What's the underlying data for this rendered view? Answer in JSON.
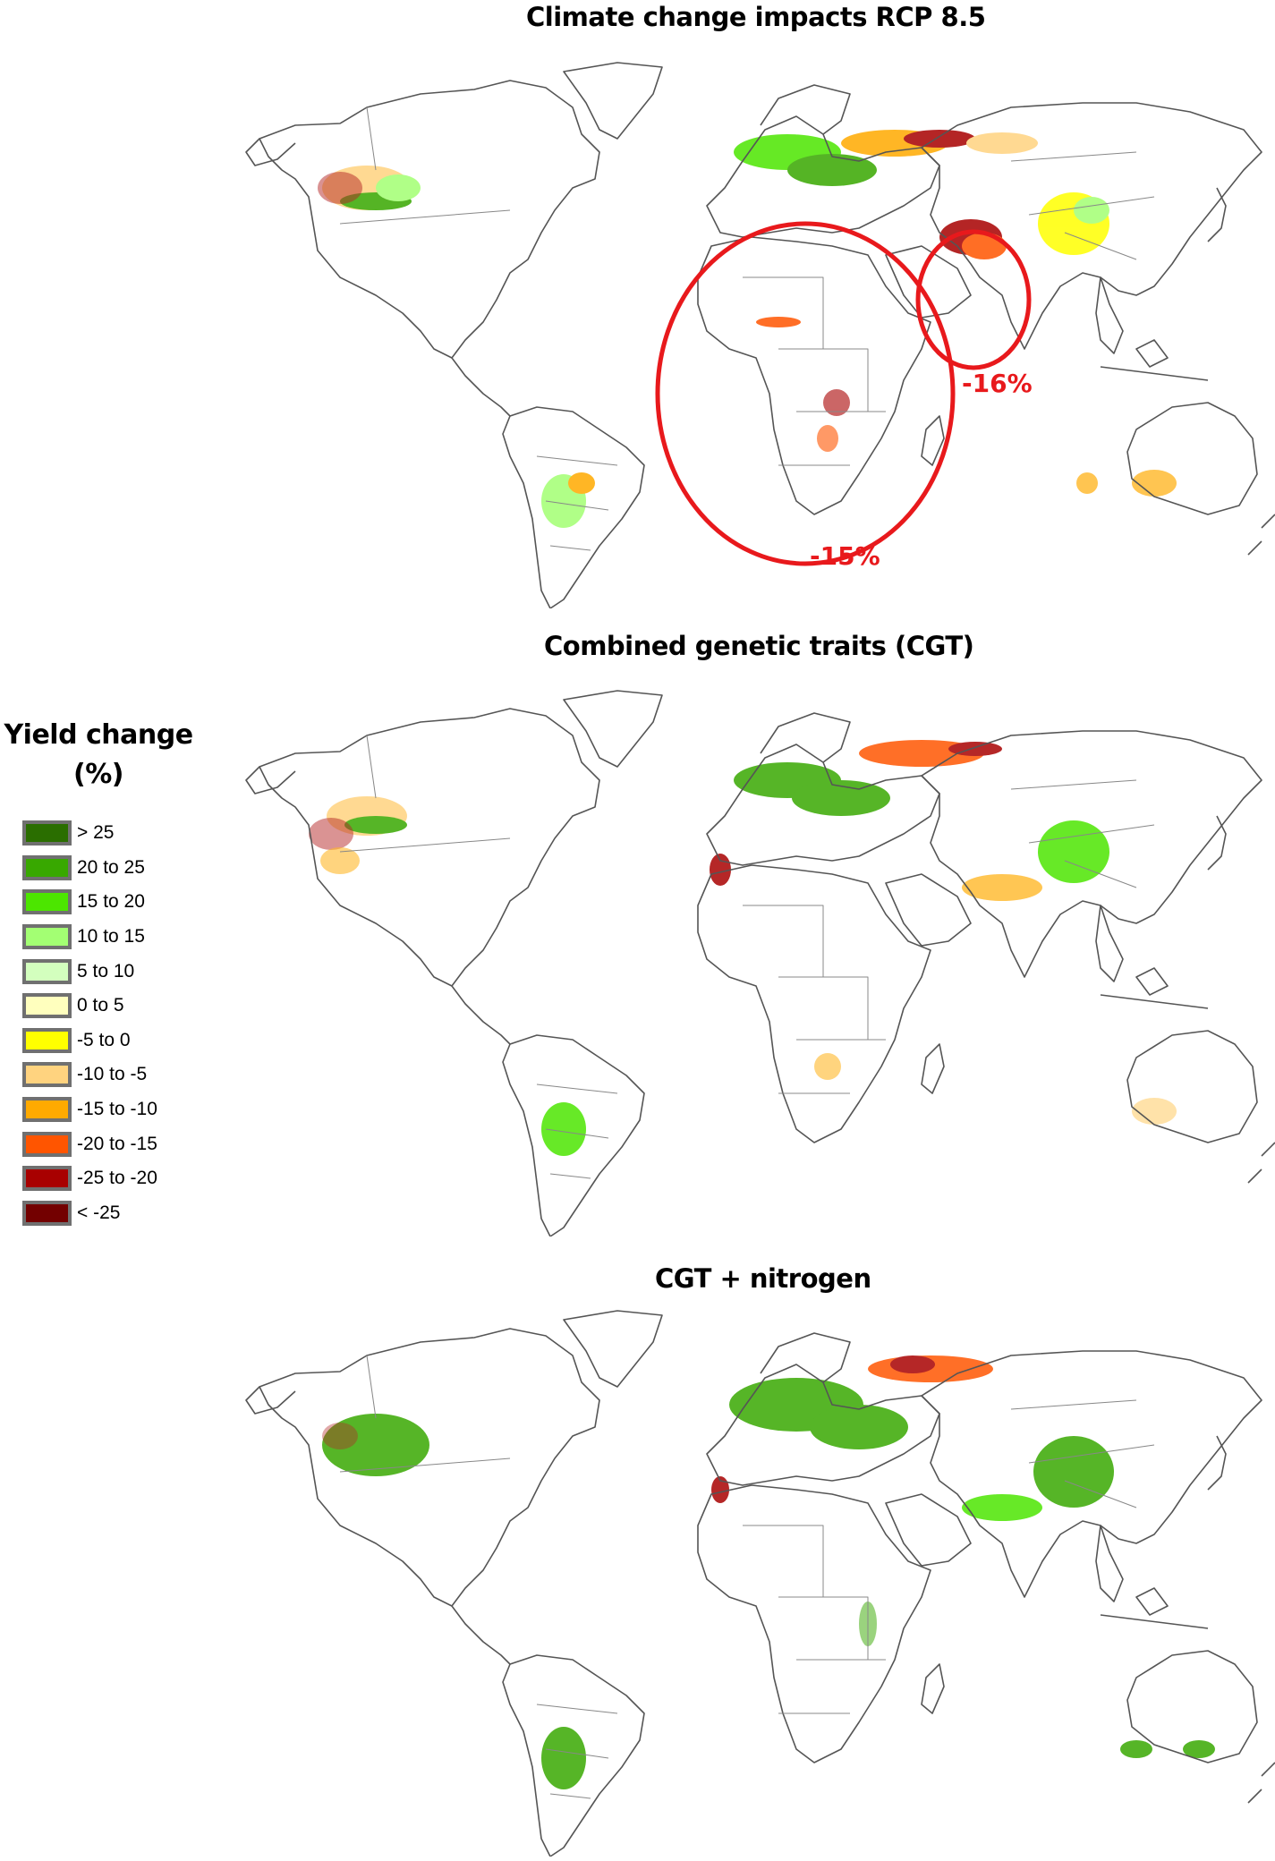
{
  "panels": [
    {
      "id": "rcp85",
      "title": "Climate change  impacts RCP 8.5"
    },
    {
      "id": "cgt",
      "title": "Combined genetic traits (CGT)"
    },
    {
      "id": "cgt_n",
      "title": "CGT + nitrogen"
    }
  ],
  "legend": {
    "title_line1": "Yield change",
    "title_line2": "(%)",
    "items": [
      {
        "label": "> 25",
        "color": "#2a6e00"
      },
      {
        "label": "20 to 25",
        "color": "#38a800"
      },
      {
        "label": "15 to 20",
        "color": "#4ce600"
      },
      {
        "label": "10 to 15",
        "color": "#a3ff73"
      },
      {
        "label": "5 to 10",
        "color": "#d3ffbe"
      },
      {
        "label": "0 to 5",
        "color": "#ffffbe"
      },
      {
        "label": "-5 to 0",
        "color": "#ffff00"
      },
      {
        "label": "-10 to -5",
        "color": "#ffd37f"
      },
      {
        "label": "-15 to -10",
        "color": "#ffaa00"
      },
      {
        "label": "-20 to -15",
        "color": "#ff5500"
      },
      {
        "label": "-25 to -20",
        "color": "#a80000"
      },
      {
        "label": "< -25",
        "color": "#730000"
      }
    ]
  },
  "annotations": [
    {
      "label": "-15%",
      "region": "Africa",
      "color": "#e8191c"
    },
    {
      "label": "-16%",
      "region": "South Asia",
      "color": "#e8191c"
    }
  ],
  "chart_data": {
    "type": "heatmap",
    "title": "Maize yield change maps",
    "panels": [
      "Climate change  impacts RCP 8.5",
      "Combined genetic traits (CGT)",
      "CGT + nitrogen"
    ],
    "legend_title": "Yield change (%)",
    "legend_bins": [
      "> 25",
      "20 to 25",
      "15 to 20",
      "10 to 15",
      "5 to 10",
      "0 to 5",
      "-5 to 0",
      "-10 to -5",
      "-15 to -10",
      "-20 to -15",
      "-25 to -20",
      "< -25"
    ],
    "highlighted_regions": [
      {
        "panel": "Climate change  impacts RCP 8.5",
        "region": "Africa",
        "value": "-15%"
      },
      {
        "panel": "Climate change  impacts RCP 8.5",
        "region": "South Asia",
        "value": "-16%"
      }
    ],
    "legend_position": "left"
  }
}
